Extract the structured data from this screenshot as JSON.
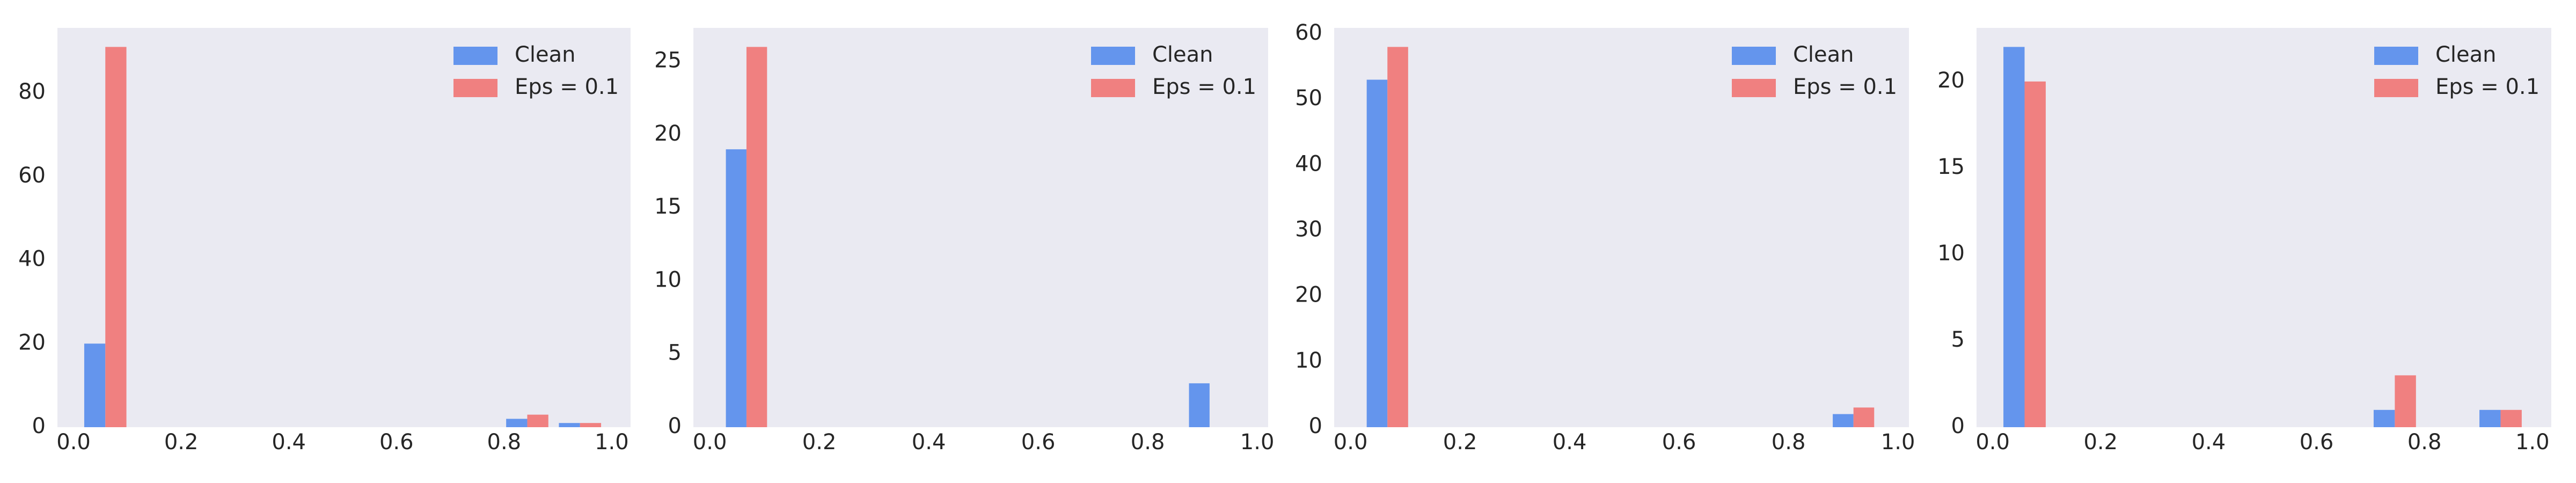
{
  "chart_data": [
    {
      "type": "histogram",
      "bins": [
        0.01,
        0.108,
        0.206,
        0.304,
        0.402,
        0.5,
        0.598,
        0.696,
        0.794,
        0.892,
        0.99
      ],
      "series": [
        {
          "name": "Clean",
          "color": "#6495ed",
          "values": [
            20,
            0,
            0,
            0,
            0,
            0,
            0,
            0,
            2,
            1
          ]
        },
        {
          "name": "Eps = 0.1",
          "color": "#f08080",
          "values": [
            91,
            0,
            0,
            0,
            0,
            0,
            0,
            0,
            3,
            1
          ]
        }
      ],
      "xlim": [
        -0.03,
        1.035
      ],
      "ylim": [
        0,
        95.55
      ],
      "xticks": [
        {
          "value": 0,
          "label": "0.0"
        },
        0.2,
        0.4,
        0.6,
        0.8,
        {
          "value": 1,
          "label": "1.0"
        }
      ],
      "yticks": [
        0,
        20,
        40,
        60,
        80
      ],
      "legend": "upper right"
    },
    {
      "type": "histogram",
      "bins": [
        0.02,
        0.114,
        0.208,
        0.302,
        0.396,
        0.49,
        0.584,
        0.678,
        0.772,
        0.866,
        0.96
      ],
      "series": [
        {
          "name": "Clean",
          "color": "#6495ed",
          "values": [
            19,
            0,
            0,
            0,
            0,
            0,
            0,
            0,
            0,
            3
          ]
        },
        {
          "name": "Eps = 0.1",
          "color": "#f08080",
          "values": [
            26,
            0,
            0,
            0,
            0,
            0,
            0,
            0,
            0,
            0
          ]
        }
      ],
      "xlim": [
        -0.03,
        1.02
      ],
      "ylim": [
        0,
        27.3
      ],
      "xticks": [
        {
          "value": 0,
          "label": "0.0"
        },
        0.2,
        0.4,
        0.6,
        0.8,
        {
          "value": 1,
          "label": "1.0"
        }
      ],
      "yticks": [
        0,
        5,
        10,
        15,
        20,
        25
      ],
      "legend": "upper right"
    },
    {
      "type": "histogram",
      "bins": [
        0.02,
        0.1146,
        0.2092,
        0.3038,
        0.3984,
        0.493,
        0.5876,
        0.6822,
        0.7768,
        0.8714,
        0.966
      ],
      "series": [
        {
          "name": "Clean",
          "color": "#6495ed",
          "values": [
            53,
            0,
            0,
            0,
            0,
            0,
            0,
            0,
            0,
            2
          ]
        },
        {
          "name": "Eps = 0.1",
          "color": "#f08080",
          "values": [
            58,
            0,
            0,
            0,
            0,
            0,
            0,
            0,
            0,
            3
          ]
        }
      ],
      "xlim": [
        -0.03,
        1.02
      ],
      "ylim": [
        0,
        60.9
      ],
      "xticks": [
        {
          "value": 0,
          "label": "0.0"
        },
        0.2,
        0.4,
        0.6,
        0.8,
        {
          "value": 1,
          "label": "1.0"
        }
      ],
      "yticks": [
        0,
        10,
        20,
        30,
        40,
        50,
        60
      ],
      "legend": "upper right"
    },
    {
      "type": "histogram",
      "bins": [
        0.01,
        0.108,
        0.206,
        0.304,
        0.402,
        0.5,
        0.598,
        0.696,
        0.794,
        0.892,
        0.99
      ],
      "series": [
        {
          "name": "Clean",
          "color": "#6495ed",
          "values": [
            22,
            0,
            0,
            0,
            0,
            0,
            0,
            1,
            0,
            1
          ]
        },
        {
          "name": "Eps = 0.1",
          "color": "#f08080",
          "values": [
            20,
            0,
            0,
            0,
            0,
            0,
            0,
            3,
            0,
            1
          ]
        }
      ],
      "xlim": [
        -0.03,
        1.035
      ],
      "ylim": [
        0,
        23.1
      ],
      "xticks": [
        {
          "value": 0,
          "label": "0.0"
        },
        0.2,
        0.4,
        0.6,
        0.8,
        {
          "value": 1,
          "label": "1.0"
        }
      ],
      "yticks": [
        0,
        5,
        10,
        15,
        20
      ],
      "legend": "upper right"
    }
  ]
}
